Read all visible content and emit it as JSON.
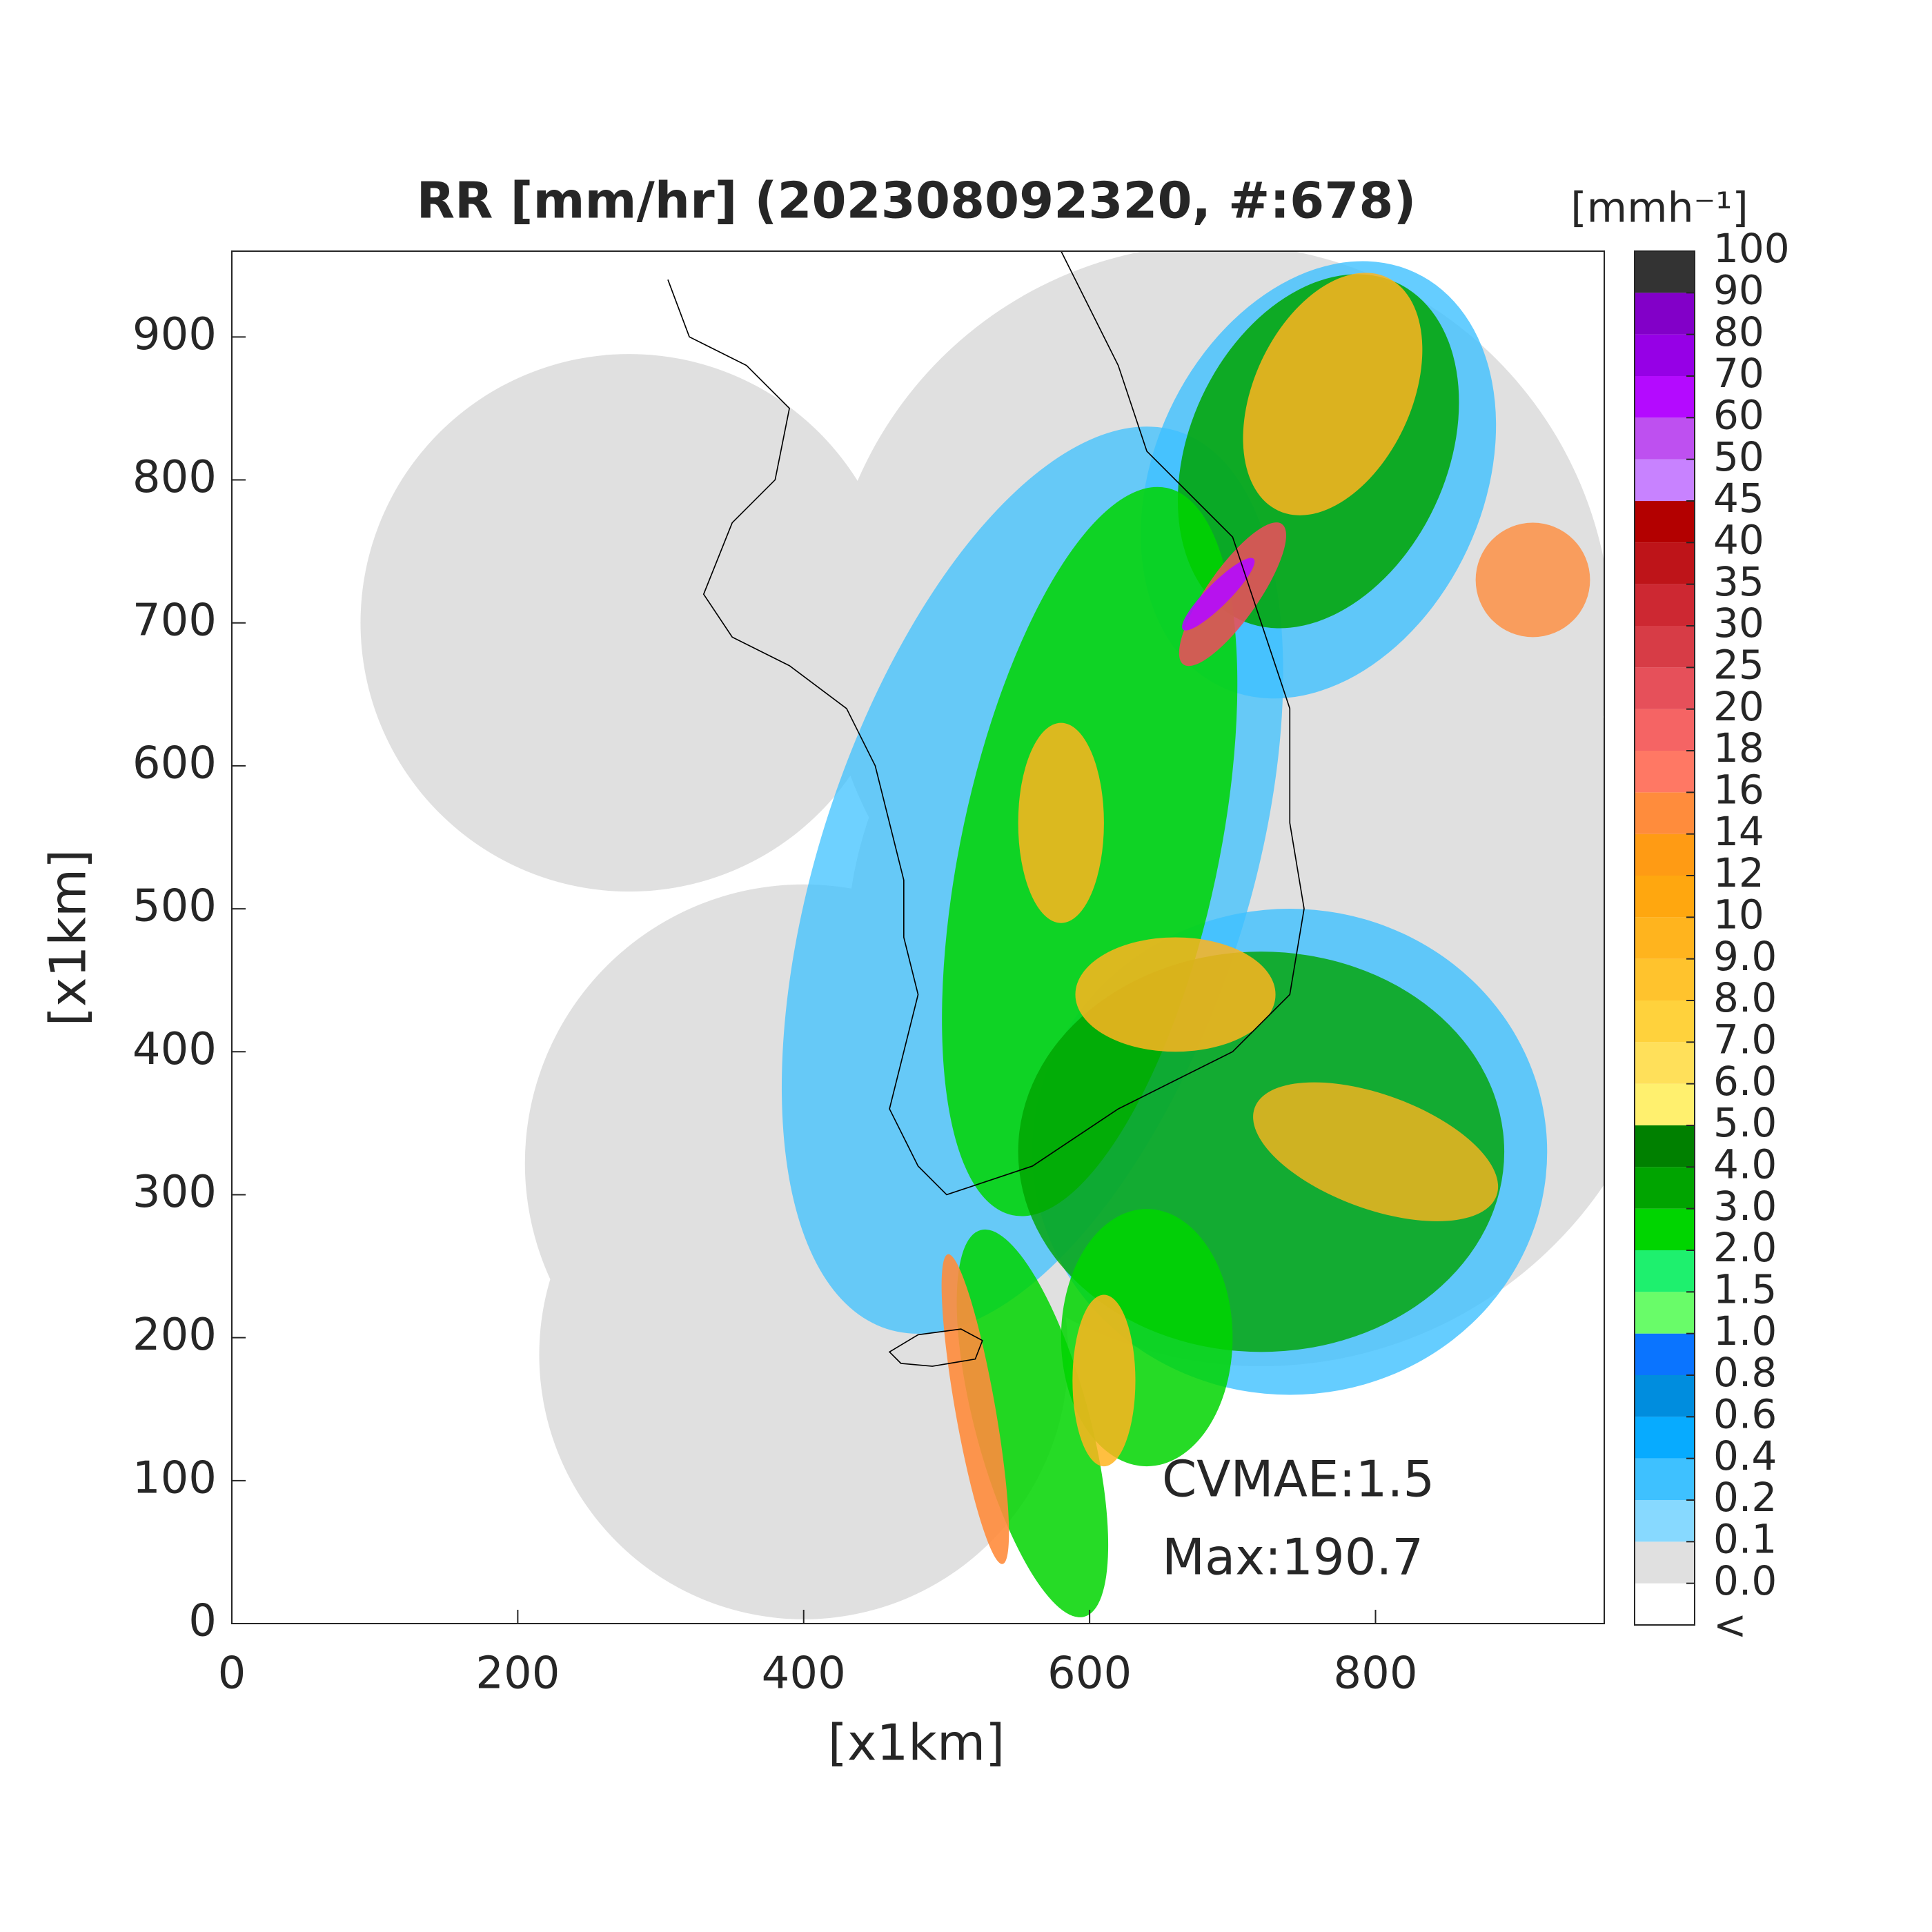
{
  "chart_data": {
    "type": "heatmap",
    "title": "RR [mm/hr] (202308092320, #:678)",
    "xlabel": "[x1km]",
    "ylabel": "[x1km]",
    "xlim": [
      0,
      960
    ],
    "ylim": [
      0,
      960
    ],
    "xticks": [
      0,
      200,
      400,
      600,
      800
    ],
    "yticks": [
      0,
      100,
      200,
      300,
      400,
      500,
      600,
      700,
      800,
      900
    ],
    "annotations": [
      "CVMAE:1.5",
      "Max:190.7"
    ],
    "colorbar": {
      "title": "[mmh⁻¹]",
      "under_label": "<",
      "ticks": [
        {
          "value": 0,
          "label": "0.0"
        },
        0.1,
        0.2,
        0.4,
        0.6,
        0.8,
        {
          "value": 1,
          "label": "1.0"
        },
        1.5,
        {
          "value": 2,
          "label": "2.0"
        },
        {
          "value": 3,
          "label": "3.0"
        },
        {
          "value": 4,
          "label": "4.0"
        },
        {
          "value": 5,
          "label": "5.0"
        },
        {
          "value": 6,
          "label": "6.0"
        },
        {
          "value": 7,
          "label": "7.0"
        },
        {
          "value": 8,
          "label": "8.0"
        },
        {
          "value": 9,
          "label": "9.0"
        },
        10,
        12,
        14,
        16,
        18,
        20,
        25,
        30,
        35,
        40,
        45,
        50,
        60,
        70,
        80,
        90,
        100
      ],
      "colors": [
        "#ffffff",
        "#e0e0e0",
        "#87d9ff",
        "#3ec1ff",
        "#07abff",
        "#008dde",
        "#0a74ff",
        "#69fc69",
        "#1ef06e",
        "#00d500",
        "#00a400",
        "#008000",
        "#fff06e",
        "#ffe05a",
        "#ffd23c",
        "#ffc32d",
        "#ffb41e",
        "#ffa70f",
        "#ff9b14",
        "#ff8c3c",
        "#ff7864",
        "#f56464",
        "#e6505a",
        "#d73c46",
        "#cd2832",
        "#be1419",
        "#b30000",
        "#c882ff",
        "#be50f0",
        "#b40aff",
        "#9600e6",
        "#8200c8",
        "#333333"
      ]
    }
  }
}
